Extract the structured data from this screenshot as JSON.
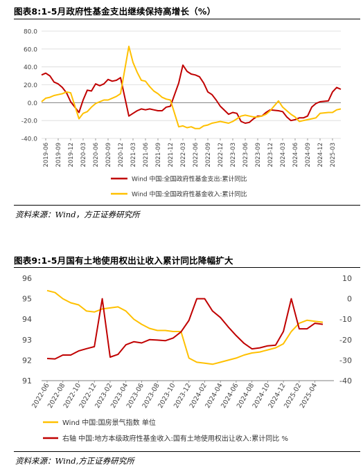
{
  "figure1": {
    "title": "图表8:1-5月政府性基金支出继续保持高增长（%）",
    "source": "资料来源：Wind，方正证券研究所"
  },
  "figure2": {
    "title": "图表9:1-5月国有土地使用权出让收入累计同比降幅扩大",
    "source": "资料来源：Wind,方正证券研究所"
  },
  "colors": {
    "red": "#c00000",
    "yellow": "#ffc000",
    "grid": "#d9d9d9",
    "axis": "#7f7f7f"
  },
  "chart_data": [
    {
      "type": "line",
      "title": "图表8:1-5月政府性基金支出继续保持高增长（%）",
      "ylim": [
        -40,
        80
      ],
      "yticks": [
        "-40.0",
        "-20.0",
        "0.0",
        "20.0",
        "40.0",
        "60.0",
        "80.0"
      ],
      "xtick_labels": [
        "2019-06",
        "2019-09",
        "2019-12",
        "2020-03",
        "2020-06",
        "2020-09",
        "2020-12",
        "2021-03",
        "2021-06",
        "2021-09",
        "2021-12",
        "2022-03",
        "2022-06",
        "2022-09",
        "2022-12",
        "2023-03",
        "2023-06",
        "2023-09",
        "2023-12",
        "2024-03",
        "2024-06",
        "2024-09",
        "2024-12",
        "2025-03"
      ],
      "legend_position": "bottom",
      "series": [
        {
          "name": "Wind 中国:全国政府性基金支出:累计同比",
          "color": "#c00000",
          "x": [
            "2019-05",
            "2019-06",
            "2019-07",
            "2019-08",
            "2019-09",
            "2019-10",
            "2019-11",
            "2019-12",
            "2020-02",
            "2020-03",
            "2020-04",
            "2020-05",
            "2020-06",
            "2020-07",
            "2020-08",
            "2020-09",
            "2020-10",
            "2020-11",
            "2020-12",
            "2021-02",
            "2021-03",
            "2021-04",
            "2021-05",
            "2021-06",
            "2021-07",
            "2021-08",
            "2021-09",
            "2021-10",
            "2021-11",
            "2021-12",
            "2022-02",
            "2022-03",
            "2022-04",
            "2022-05",
            "2022-06",
            "2022-07",
            "2022-08",
            "2022-09",
            "2022-10",
            "2022-11",
            "2022-12",
            "2023-02",
            "2023-03",
            "2023-04",
            "2023-05",
            "2023-06",
            "2023-07",
            "2023-08",
            "2023-09",
            "2023-10",
            "2023-11",
            "2023-12",
            "2024-02",
            "2024-03",
            "2024-04",
            "2024-05",
            "2024-06",
            "2024-07",
            "2024-08",
            "2024-09",
            "2024-10",
            "2024-11",
            "2024-12",
            "2025-02",
            "2025-03",
            "2025-04",
            "2025-05"
          ],
          "values": [
            31,
            33,
            30,
            23,
            21,
            17,
            11,
            1,
            -11,
            3,
            14,
            13,
            21,
            19,
            21,
            26,
            24,
            25,
            28,
            -15,
            -12,
            -9,
            -7,
            -8,
            -7,
            -8,
            -9,
            -9,
            -5,
            -4,
            22,
            42,
            35,
            32,
            31,
            29,
            22,
            12,
            9,
            3,
            -4,
            -13,
            -11,
            -12,
            -21,
            -23,
            -22,
            -18,
            -15,
            -15,
            -11,
            -8,
            -9,
            -10,
            -16,
            -20,
            -19,
            -17,
            -17,
            -15,
            -5,
            -1,
            1,
            2,
            12,
            17,
            15
          ]
        },
        {
          "name": "Wind 中国:全国政府性基金收入:累计同比",
          "color": "#ffc000",
          "x": [
            "2019-05",
            "2019-06",
            "2019-07",
            "2019-08",
            "2019-09",
            "2019-10",
            "2019-11",
            "2019-12",
            "2020-02",
            "2020-03",
            "2020-04",
            "2020-05",
            "2020-06",
            "2020-07",
            "2020-08",
            "2020-09",
            "2020-10",
            "2020-11",
            "2020-12",
            "2021-02",
            "2021-03",
            "2021-04",
            "2021-05",
            "2021-06",
            "2021-07",
            "2021-08",
            "2021-09",
            "2021-10",
            "2021-11",
            "2021-12",
            "2022-02",
            "2022-03",
            "2022-04",
            "2022-05",
            "2022-06",
            "2022-07",
            "2022-08",
            "2022-09",
            "2022-10",
            "2022-11",
            "2022-12",
            "2023-02",
            "2023-03",
            "2023-04",
            "2023-05",
            "2023-06",
            "2023-07",
            "2023-08",
            "2023-09",
            "2023-10",
            "2023-11",
            "2023-12",
            "2024-02",
            "2024-03",
            "2024-04",
            "2024-05",
            "2024-06",
            "2024-07",
            "2024-08",
            "2024-09",
            "2024-10",
            "2024-11",
            "2024-12",
            "2025-02",
            "2025-03",
            "2025-04",
            "2025-05"
          ],
          "values": [
            1,
            5,
            6,
            8,
            9,
            10,
            12,
            11,
            -18,
            -12,
            -10,
            -5,
            -1,
            1,
            3,
            3,
            5,
            7,
            10,
            63,
            45,
            34,
            25,
            24,
            18,
            13,
            10,
            6,
            4,
            3,
            -27,
            -26,
            -28,
            -27,
            -29,
            -29,
            -26,
            -25,
            -23,
            -22,
            -21,
            -23,
            -21,
            -18,
            -15,
            -14,
            -15,
            -16,
            -16,
            -15,
            -13,
            -9,
            2,
            -5,
            -9,
            -13,
            -16,
            -21,
            -20,
            -19,
            -18,
            -17,
            -12,
            -11,
            -11,
            -8,
            -7
          ]
        }
      ]
    },
    {
      "type": "line",
      "title": "图表9:1-5月国有土地使用权出让收入累计同比降幅扩大",
      "ylim": [
        91,
        96
      ],
      "yticks": [
        "91",
        "92",
        "93",
        "94",
        "95",
        "96"
      ],
      "y2lim": [
        -40,
        10
      ],
      "y2ticks": [
        "-40",
        "-30",
        "-20",
        "-10",
        "0",
        "10"
      ],
      "xtick_labels": [
        "2022-06",
        "2022-08",
        "2022-10",
        "2022-12",
        "2023-02",
        "2023-04",
        "2023-06",
        "2023-08",
        "2023-10",
        "2023-12",
        "2024-02",
        "2024-04",
        "2024-06",
        "2024-08",
        "2024-10",
        "2024-12",
        "2025-02",
        "2025-04"
      ],
      "legend_position": "bottom",
      "series": [
        {
          "name": "Wind 中国:国房景气指数 单位",
          "color": "#ffc000",
          "axis": "left",
          "x": [
            "2022-06",
            "2022-07",
            "2022-08",
            "2022-09",
            "2022-10",
            "2022-11",
            "2022-12",
            "2023-01",
            "2023-02",
            "2023-03",
            "2023-04",
            "2023-05",
            "2023-06",
            "2023-07",
            "2023-08",
            "2023-09",
            "2023-10",
            "2023-11",
            "2023-12",
            "2024-01",
            "2024-02",
            "2024-03",
            "2024-04",
            "2024-05",
            "2024-06",
            "2024-07",
            "2024-08",
            "2024-09",
            "2024-10",
            "2024-11",
            "2024-12",
            "2025-01",
            "2025-02",
            "2025-03",
            "2025-04",
            "2025-05"
          ],
          "values": [
            95.4,
            95.3,
            95.0,
            94.8,
            94.7,
            94.4,
            94.35,
            94.5,
            94.55,
            94.6,
            94.4,
            94.0,
            93.75,
            93.55,
            93.45,
            93.45,
            93.4,
            93.4,
            92.1,
            91.9,
            91.85,
            91.8,
            91.9,
            92.0,
            92.1,
            92.25,
            92.35,
            92.4,
            92.5,
            92.6,
            92.8,
            93.4,
            93.8,
            93.95,
            93.9,
            93.85
          ]
        },
        {
          "name": "右轴 中国:地方本级政府性基金收入:国有土地使用权出让收入:累计同比 %",
          "color": "#c00000",
          "axis": "right",
          "x": [
            "2022-06",
            "2022-07",
            "2022-08",
            "2022-09",
            "2022-10",
            "2022-11",
            "2022-12",
            "2023-01",
            "2023-02",
            "2023-03",
            "2023-04",
            "2023-05",
            "2023-06",
            "2023-07",
            "2023-08",
            "2023-09",
            "2023-10",
            "2023-11",
            "2023-12",
            "2024-01",
            "2024-02",
            "2024-03",
            "2024-04",
            "2024-05",
            "2024-06",
            "2024-07",
            "2024-08",
            "2024-09",
            "2024-10",
            "2024-11",
            "2024-12",
            "2025-01",
            "2025-02",
            "2025-03",
            "2025-04",
            "2025-05"
          ],
          "values": [
            -29.2,
            -29.4,
            -27.5,
            -27.5,
            -25.5,
            -24.4,
            -23.4,
            0,
            -28.5,
            -27.2,
            -22.5,
            -21.0,
            -21.6,
            -20.0,
            -20.2,
            -20.5,
            -19.2,
            -16.2,
            -10.6,
            0,
            0,
            -6.0,
            -9.2,
            -13.8,
            -18.0,
            -21.8,
            -24.5,
            -24.0,
            -23.0,
            -22.7,
            -16.0,
            0,
            -14.7,
            -14.7,
            -12.0,
            -12.5
          ]
        }
      ]
    }
  ]
}
